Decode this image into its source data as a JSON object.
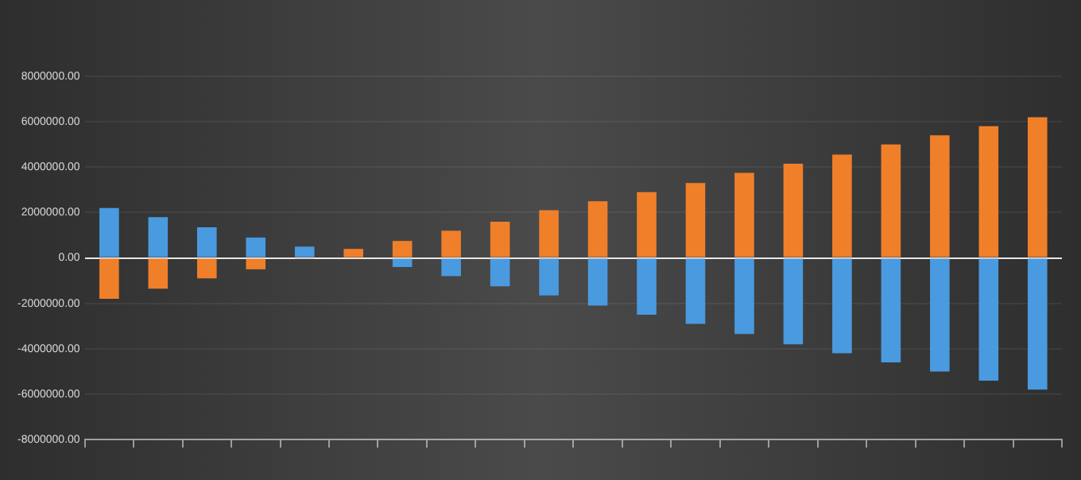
{
  "chart_data": {
    "type": "bar",
    "stacked": true,
    "grid": "y",
    "legend": false,
    "categories": [
      null,
      null,
      null,
      null,
      null,
      null,
      null,
      null,
      null,
      null,
      null,
      null,
      null,
      null,
      null,
      null,
      null,
      null,
      null,
      null
    ],
    "series": [
      {
        "color": "#4a9ae0",
        "values": [
          2200000,
          1800000,
          1350000,
          900000,
          500000,
          null,
          -400000,
          -800000,
          -1250000,
          -1650000,
          -2100000,
          -2500000,
          -2900000,
          -3350000,
          -3800000,
          -4200000,
          -4600000,
          -5000000,
          -5400000,
          -5800000
        ]
      },
      {
        "color": "#f07f2a",
        "values": [
          -1800000,
          -1350000,
          -900000,
          -500000,
          -50000,
          400000,
          750000,
          1200000,
          1600000,
          2100000,
          2500000,
          2900000,
          3300000,
          3750000,
          4150000,
          4550000,
          5000000,
          5400000,
          5800000,
          6200000
        ]
      }
    ],
    "ylim": [
      -8000000,
      8000000
    ],
    "yticks": [
      {
        "value": -8000000,
        "label": "-8000000.00"
      },
      {
        "value": -6000000,
        "label": "-6000000.00"
      },
      {
        "value": -4000000,
        "label": "-4000000.00"
      },
      {
        "value": -2000000,
        "label": "-2000000.00"
      },
      {
        "value": 0,
        "label": "0.00"
      },
      {
        "value": 2000000,
        "label": "2000000.00"
      },
      {
        "value": 4000000,
        "label": "4000000.00"
      },
      {
        "value": 6000000,
        "label": "6000000.00"
      },
      {
        "value": 8000000,
        "label": "8000000.00"
      }
    ]
  }
}
